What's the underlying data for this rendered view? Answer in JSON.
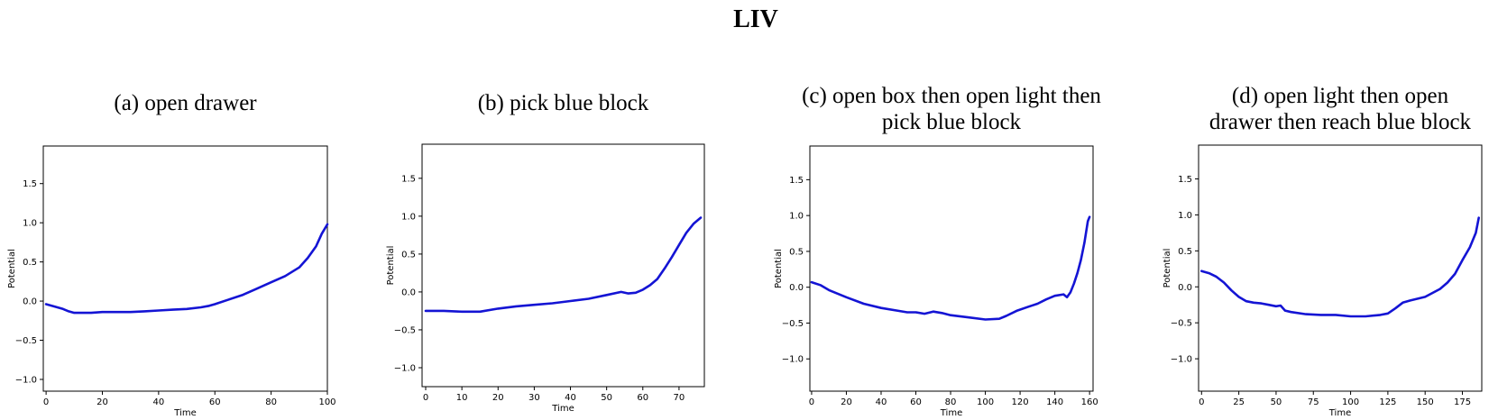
{
  "figure_title": "LIV",
  "colors": {
    "line": "#1414d4",
    "axes": "#000000",
    "background": "#ffffff"
  },
  "chart_data": [
    {
      "type": "line",
      "title": "(a) open drawer",
      "title_lines": [
        "(a) open drawer"
      ],
      "xlabel": "Time",
      "ylabel": "Potential",
      "xlim": [
        -1,
        100
      ],
      "ylim": [
        -1.15,
        1.98
      ],
      "xticks": [
        0,
        20,
        40,
        60,
        80,
        100
      ],
      "yticks": [
        -1.0,
        -0.5,
        0.0,
        0.5,
        1.0,
        1.5
      ],
      "ytick_labels": [
        "−1.0",
        "−0.5",
        "0.0",
        "0.5",
        "1.0",
        "1.5"
      ],
      "grid": false,
      "series": [
        {
          "x": [
            0,
            3,
            6,
            8,
            10,
            12,
            16,
            20,
            25,
            30,
            35,
            40,
            45,
            50,
            55,
            58,
            60,
            65,
            70,
            75,
            80,
            85,
            90,
            93,
            96,
            98,
            100
          ],
          "y": [
            -0.04,
            -0.07,
            -0.1,
            -0.13,
            -0.15,
            -0.15,
            -0.15,
            -0.14,
            -0.14,
            -0.14,
            -0.13,
            -0.12,
            -0.11,
            -0.1,
            -0.08,
            -0.06,
            -0.04,
            0.02,
            0.08,
            0.16,
            0.24,
            0.32,
            0.43,
            0.55,
            0.7,
            0.86,
            0.98
          ]
        }
      ]
    },
    {
      "type": "line",
      "title": "(b) pick blue block",
      "title_lines": [
        "(b) pick blue block"
      ],
      "xlabel": "Time",
      "ylabel": "Potential",
      "xlim": [
        -1,
        77
      ],
      "ylim": [
        -1.25,
        1.95
      ],
      "xticks": [
        0,
        10,
        20,
        30,
        40,
        50,
        60,
        70
      ],
      "yticks": [
        -1.0,
        -0.5,
        0.0,
        0.5,
        1.0,
        1.5
      ],
      "ytick_labels": [
        "−1.0",
        "−0.5",
        "0.0",
        "0.5",
        "1.0",
        "1.5"
      ],
      "grid": false,
      "series": [
        {
          "x": [
            0,
            5,
            10,
            15,
            20,
            25,
            30,
            35,
            40,
            45,
            50,
            54,
            56,
            58,
            60,
            62,
            64,
            66,
            68,
            70,
            72,
            74,
            76
          ],
          "y": [
            -0.25,
            -0.25,
            -0.26,
            -0.26,
            -0.22,
            -0.19,
            -0.17,
            -0.15,
            -0.12,
            -0.09,
            -0.04,
            0.0,
            -0.02,
            -0.01,
            0.03,
            0.09,
            0.17,
            0.31,
            0.46,
            0.62,
            0.78,
            0.9,
            0.98
          ]
        }
      ]
    },
    {
      "type": "line",
      "title": "(c) open box then open light then pick blue block",
      "title_lines": [
        "(c) open box then open light then",
        "pick blue block"
      ],
      "xlabel": "Time",
      "ylabel": "Potential",
      "xlim": [
        -1,
        162
      ],
      "ylim": [
        -1.45,
        1.97
      ],
      "xticks": [
        0,
        20,
        40,
        60,
        80,
        100,
        120,
        140,
        160
      ],
      "yticks": [
        -1.0,
        -0.5,
        0.0,
        0.5,
        1.0,
        1.5
      ],
      "ytick_labels": [
        "−1.0",
        "−0.5",
        "0.0",
        "0.5",
        "1.0",
        "1.5"
      ],
      "grid": false,
      "series": [
        {
          "x": [
            0,
            5,
            10,
            20,
            30,
            40,
            50,
            55,
            60,
            65,
            70,
            75,
            80,
            90,
            100,
            108,
            112,
            118,
            125,
            130,
            135,
            140,
            145,
            147,
            149,
            151,
            153,
            155,
            157,
            159,
            160
          ],
          "y": [
            0.07,
            0.03,
            -0.04,
            -0.14,
            -0.23,
            -0.29,
            -0.33,
            -0.35,
            -0.35,
            -0.37,
            -0.34,
            -0.36,
            -0.39,
            -0.42,
            -0.45,
            -0.44,
            -0.4,
            -0.33,
            -0.27,
            -0.23,
            -0.17,
            -0.12,
            -0.1,
            -0.14,
            -0.07,
            0.05,
            0.2,
            0.38,
            0.62,
            0.92,
            0.98
          ]
        }
      ]
    },
    {
      "type": "line",
      "title": "(d) open light then open drawer then reach blue block",
      "title_lines": [
        "(d) open light then open",
        "drawer then reach blue block"
      ],
      "xlabel": "Time",
      "ylabel": "Potential",
      "xlim": [
        -2,
        188
      ],
      "ylim": [
        -1.45,
        1.97
      ],
      "xticks": [
        0,
        25,
        50,
        75,
        100,
        125,
        150,
        175
      ],
      "yticks": [
        -1.0,
        -0.5,
        0.0,
        0.5,
        1.0,
        1.5
      ],
      "ytick_labels": [
        "−1.0",
        "−0.5",
        "0.0",
        "0.5",
        "1.0",
        "1.5"
      ],
      "grid": false,
      "series": [
        {
          "x": [
            0,
            5,
            10,
            15,
            20,
            25,
            30,
            35,
            40,
            45,
            50,
            53,
            56,
            60,
            70,
            80,
            90,
            100,
            110,
            120,
            125,
            130,
            135,
            140,
            150,
            160,
            165,
            170,
            175,
            180,
            184,
            186
          ],
          "y": [
            0.22,
            0.19,
            0.14,
            0.06,
            -0.05,
            -0.14,
            -0.2,
            -0.22,
            -0.23,
            -0.25,
            -0.27,
            -0.26,
            -0.33,
            -0.35,
            -0.38,
            -0.39,
            -0.39,
            -0.41,
            -0.41,
            -0.39,
            -0.37,
            -0.3,
            -0.22,
            -0.19,
            -0.14,
            -0.03,
            0.06,
            0.18,
            0.37,
            0.55,
            0.75,
            0.96
          ]
        }
      ]
    }
  ]
}
